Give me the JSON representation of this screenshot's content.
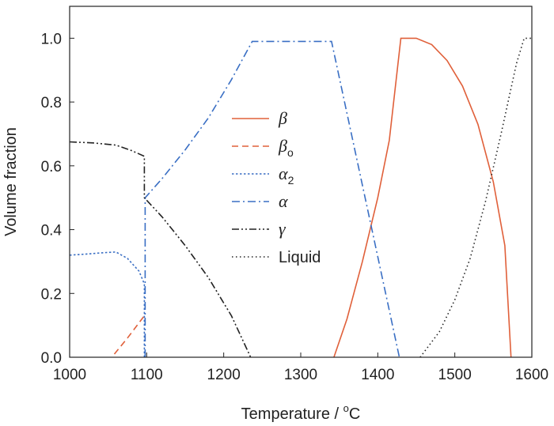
{
  "chart_data": {
    "type": "line",
    "xlabel_main": "Temperature / ",
    "xlabel_sup": "o",
    "xlabel_end": "C",
    "ylabel": "Volume fraction",
    "xlim": [
      1000,
      1600
    ],
    "ylim": [
      0,
      1.1
    ],
    "xticks": [
      1000,
      1100,
      1200,
      1300,
      1400,
      1500,
      1600
    ],
    "yticks": [
      0.0,
      0.2,
      0.4,
      0.6,
      0.8,
      1.0
    ],
    "xtick_labels": [
      "1000",
      "1100",
      "1200",
      "1300",
      "1400",
      "1500",
      "1600"
    ],
    "ytick_labels": [
      "0.0",
      "0.2",
      "0.4",
      "0.6",
      "0.8",
      "1.0"
    ],
    "grid": false,
    "legend_position": "center-left",
    "series": [
      {
        "name": "β",
        "sub": "",
        "color": "#e0603a",
        "dash": "solid",
        "points": [
          [
            1343,
            0.0
          ],
          [
            1360,
            0.12
          ],
          [
            1380,
            0.3
          ],
          [
            1400,
            0.5
          ],
          [
            1415,
            0.68
          ],
          [
            1430,
            1.0
          ],
          [
            1450,
            1.0
          ],
          [
            1470,
            0.98
          ],
          [
            1490,
            0.93
          ],
          [
            1510,
            0.85
          ],
          [
            1530,
            0.73
          ],
          [
            1550,
            0.55
          ],
          [
            1565,
            0.35
          ],
          [
            1573,
            0.0
          ]
        ]
      },
      {
        "name": "β",
        "sub": "o",
        "color": "#e0603a",
        "dash": "dashed",
        "points": [
          [
            1058,
            0.01
          ],
          [
            1075,
            0.06
          ],
          [
            1097,
            0.13
          ]
        ]
      },
      {
        "name": "α",
        "sub": "2",
        "color": "#3a6fc4",
        "dash": "dotted",
        "points": [
          [
            1000,
            0.32
          ],
          [
            1020,
            0.323
          ],
          [
            1040,
            0.327
          ],
          [
            1060,
            0.33
          ],
          [
            1075,
            0.31
          ],
          [
            1090,
            0.27
          ],
          [
            1097,
            0.23
          ],
          [
            1097,
            0.0
          ]
        ]
      },
      {
        "name": "α",
        "sub": "",
        "color": "#3a6fc4",
        "dash": "dashdot",
        "points": [
          [
            1098,
            0.0
          ],
          [
            1098,
            0.5
          ],
          [
            1120,
            0.56
          ],
          [
            1150,
            0.65
          ],
          [
            1180,
            0.75
          ],
          [
            1210,
            0.87
          ],
          [
            1237,
            0.99
          ],
          [
            1340,
            0.99
          ],
          [
            1428,
            0.0
          ]
        ]
      },
      {
        "name": "γ",
        "sub": "",
        "color": "#222222",
        "dash": "dashdotdot",
        "points": [
          [
            1000,
            0.675
          ],
          [
            1030,
            0.672
          ],
          [
            1060,
            0.665
          ],
          [
            1080,
            0.648
          ],
          [
            1097,
            0.63
          ],
          [
            1097,
            0.5
          ],
          [
            1120,
            0.44
          ],
          [
            1150,
            0.35
          ],
          [
            1180,
            0.25
          ],
          [
            1210,
            0.13
          ],
          [
            1235,
            0.0
          ]
        ]
      },
      {
        "name": "Liquid",
        "sub": "",
        "color": "#222222",
        "dash": "finedot",
        "points": [
          [
            1455,
            0.0
          ],
          [
            1480,
            0.08
          ],
          [
            1500,
            0.18
          ],
          [
            1520,
            0.31
          ],
          [
            1540,
            0.49
          ],
          [
            1560,
            0.7
          ],
          [
            1580,
            0.92
          ],
          [
            1590,
            1.0
          ],
          [
            1600,
            1.0
          ]
        ]
      }
    ]
  }
}
